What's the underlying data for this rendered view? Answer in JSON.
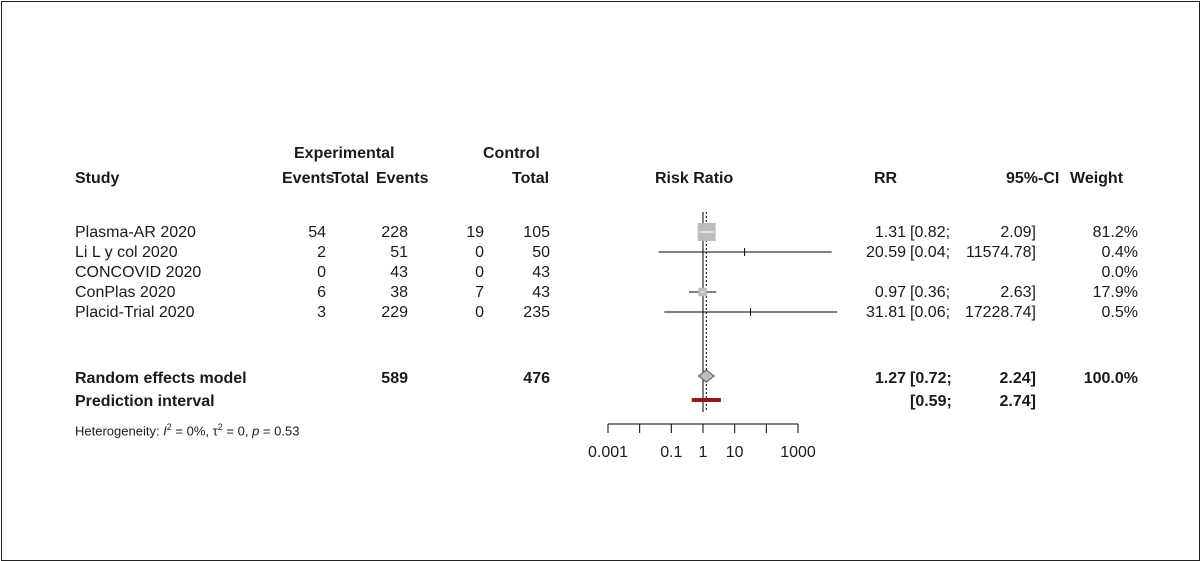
{
  "headers": {
    "study": "Study",
    "experimental": "Experimental",
    "control": "Control",
    "events_exp": "Events",
    "total_exp": "Total",
    "events_ctrl": "Events",
    "total_ctrl": "Total",
    "risk_ratio": "Risk Ratio",
    "rr": "RR",
    "ci": "95%-CI",
    "weight": "Weight"
  },
  "studies": [
    {
      "name": "Plasma-AR 2020",
      "ev_exp": "54",
      "tot_exp": "228",
      "ev_ctrl": "19",
      "tot_ctrl": "105",
      "rr": "1.31",
      "ci_low": "[0.82;",
      "ci_high": "2.09]",
      "weight": "81.2%"
    },
    {
      "name": "Li L y col 2020",
      "ev_exp": "2",
      "tot_exp": "51",
      "ev_ctrl": "0",
      "tot_ctrl": "50",
      "rr": "20.59",
      "ci_low": "[0.04;",
      "ci_high": "11574.78]",
      "weight": "0.4%"
    },
    {
      "name": "CONCOVID 2020",
      "ev_exp": "0",
      "tot_exp": "43",
      "ev_ctrl": "0",
      "tot_ctrl": "43",
      "rr": "",
      "ci_low": "",
      "ci_high": "",
      "weight": "0.0%"
    },
    {
      "name": "ConPlas 2020",
      "ev_exp": "6",
      "tot_exp": "38",
      "ev_ctrl": "7",
      "tot_ctrl": "43",
      "rr": "0.97",
      "ci_low": "[0.36;",
      "ci_high": "2.63]",
      "weight": "17.9%"
    },
    {
      "name": "Placid-Trial 2020",
      "ev_exp": "3",
      "tot_exp": "229",
      "ev_ctrl": "0",
      "tot_ctrl": "235",
      "rr": "31.81",
      "ci_low": "[0.06;",
      "ci_high": "17228.74]",
      "weight": "0.5%"
    }
  ],
  "summary": {
    "label": "Random effects model",
    "tot_exp": "589",
    "tot_ctrl": "476",
    "rr": "1.27",
    "ci_low": "[0.72;",
    "ci_high": "2.24]",
    "weight": "100.0%"
  },
  "prediction": {
    "label": "Prediction interval",
    "ci_low": "[0.59;",
    "ci_high": "2.74]"
  },
  "heterogeneity": {
    "prefix": "Heterogeneity: ",
    "i2": "I",
    "i2_val": " = 0%, ",
    "tau": "τ",
    "tau_val": " = 0, ",
    "p": "p",
    "p_val": " = 0.53"
  },
  "colors": {
    "study_box": "#bdbdbd",
    "summary_diamond": "#bdbdbd",
    "prediction_bar": "#8b1a1a"
  },
  "chart_data": {
    "type": "forest",
    "xlabel": "",
    "x_scale": "log",
    "xlim": [
      0.001,
      1000
    ],
    "ticks": [
      0.001,
      0.1,
      1,
      10,
      1000
    ],
    "tick_labels": [
      "0.001",
      "0.1",
      "1",
      "10",
      "1000"
    ],
    "reference_line": 1,
    "summary_line": 1.27,
    "studies": [
      {
        "name": "Plasma-AR 2020",
        "rr": 1.31,
        "lo": 0.82,
        "hi": 2.09,
        "weight": 81.2
      },
      {
        "name": "Li L y col 2020",
        "rr": 20.59,
        "lo": 0.04,
        "hi": 11574.78,
        "weight": 0.4
      },
      {
        "name": "CONCOVID 2020",
        "rr": null,
        "lo": null,
        "hi": null,
        "weight": 0.0
      },
      {
        "name": "ConPlas 2020",
        "rr": 0.97,
        "lo": 0.36,
        "hi": 2.63,
        "weight": 17.9
      },
      {
        "name": "Placid-Trial 2020",
        "rr": 31.81,
        "lo": 0.06,
        "hi": 17228.74,
        "weight": 0.5
      }
    ],
    "pooled": {
      "rr": 1.27,
      "lo": 0.72,
      "hi": 2.24
    },
    "prediction_interval": {
      "lo": 0.59,
      "hi": 2.74
    }
  }
}
